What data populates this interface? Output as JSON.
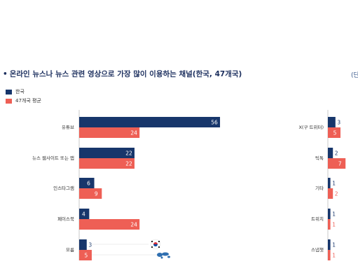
{
  "title": "온라인 뉴스나 뉴스 관련 영상으로 가장 많이 이용하는 채널(한국, 47개국)",
  "unit_label": "(단",
  "colors": {
    "korea": "#17366b",
    "avg": "#ee5f55",
    "text_korea": "#17366b",
    "text_avg": "#ee5f55"
  },
  "icons": [
    "korea-flag-icon",
    "world-map-icon"
  ],
  "chart_data": [
    {
      "type": "bar",
      "orientation": "horizontal",
      "categories": [
        "유튜브",
        "뉴스 웹사이트 또는 앱",
        "인스타그램",
        "페이스북",
        "모름"
      ],
      "series": [
        {
          "name": "한국",
          "values": [
            56,
            22,
            6,
            4,
            3
          ]
        },
        {
          "name": "47개국 평균",
          "values": [
            24,
            22,
            9,
            24,
            5
          ]
        }
      ],
      "legend": "top-left"
    },
    {
      "type": "bar",
      "orientation": "horizontal",
      "categories": [
        "X(구 트위터)",
        "틱톡",
        "기타",
        "트위치",
        "스냅챗"
      ],
      "series": [
        {
          "name": "한국",
          "values": [
            3,
            2,
            1,
            1,
            1
          ]
        },
        {
          "name": "47개국 평균",
          "values": [
            5,
            7,
            2,
            1,
            1
          ]
        }
      ]
    }
  ]
}
